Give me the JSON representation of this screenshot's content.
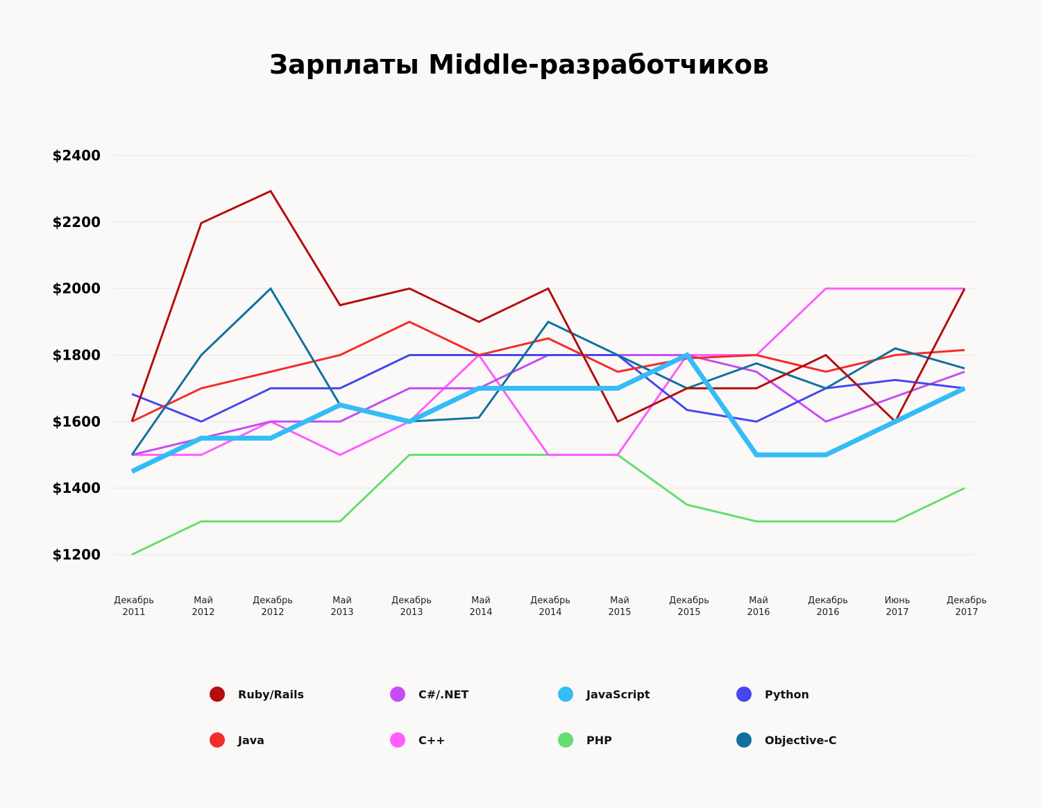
{
  "chart_data": {
    "type": "line",
    "title": "Зарплаты Middle-разработчиков",
    "xlabel": "",
    "ylabel": "",
    "ylim": [
      1200,
      2400
    ],
    "yticks": [
      {
        "value": 2400,
        "label": "$2400"
      },
      {
        "value": 2200,
        "label": "$2200"
      },
      {
        "value": 2000,
        "label": "$2000"
      },
      {
        "value": 1800,
        "label": "$1800"
      },
      {
        "value": 1600,
        "label": "$1600"
      },
      {
        "value": 1400,
        "label": "$1400"
      },
      {
        "value": 1200,
        "label": "$1200"
      }
    ],
    "grid": true,
    "legend_position": "bottom",
    "categories": [
      {
        "line1": "Декабрь",
        "line2": "2011"
      },
      {
        "line1": "Май",
        "line2": "2012"
      },
      {
        "line1": "Декабрь",
        "line2": "2012"
      },
      {
        "line1": "Май",
        "line2": "2013"
      },
      {
        "line1": "Декабрь",
        "line2": "2013"
      },
      {
        "line1": "Май",
        "line2": "2014"
      },
      {
        "line1": "Декабрь",
        "line2": "2014"
      },
      {
        "line1": "Май",
        "line2": "2015"
      },
      {
        "line1": "Декабрь",
        "line2": "2015"
      },
      {
        "line1": "Май",
        "line2": "2016"
      },
      {
        "line1": "Декабрь",
        "line2": "2016"
      },
      {
        "line1": "Июнь",
        "line2": "2017"
      },
      {
        "line1": "Декабрь",
        "line2": "2017"
      }
    ],
    "series": [
      {
        "name": "PHP",
        "color": "#66dd6e",
        "emphasis": false,
        "values": [
          1200,
          1300,
          1300,
          1300,
          1500,
          1500,
          1500,
          1500,
          1350,
          1300,
          1300,
          1300,
          1400
        ]
      },
      {
        "name": "C++",
        "color": "#ff5cff",
        "emphasis": false,
        "values": [
          1500,
          1500,
          1600,
          1500,
          1600,
          1800,
          1500,
          1500,
          1800,
          1800,
          2000,
          2000,
          2000
        ]
      },
      {
        "name": "C#/.NET",
        "color": "#c54cf4",
        "emphasis": false,
        "values": [
          1500,
          1550,
          1600,
          1600,
          1700,
          1700,
          1800,
          1800,
          1800,
          1750,
          1600,
          1675,
          1750
        ]
      },
      {
        "name": "Python",
        "color": "#4646f0",
        "emphasis": false,
        "values": [
          1683,
          1600,
          1700,
          1700,
          1800,
          1800,
          1800,
          1800,
          1635,
          1600,
          1700,
          1725,
          1700
        ]
      },
      {
        "name": "Java",
        "color": "#f42c2c",
        "emphasis": false,
        "values": [
          1600,
          1700,
          1750,
          1800,
          1900,
          1800,
          1850,
          1750,
          1790,
          1800,
          1750,
          1800,
          1815
        ]
      },
      {
        "name": "Objective-C",
        "color": "#10709f",
        "emphasis": false,
        "values": [
          1500,
          1800,
          2000,
          1650,
          1600,
          1612,
          1900,
          1800,
          1700,
          1775,
          1700,
          1820,
          1760
        ]
      },
      {
        "name": "Ruby/Rails",
        "color": "#b40d0d",
        "emphasis": false,
        "values": [
          1600,
          2197,
          2293,
          1950,
          2000,
          1900,
          2000,
          1600,
          1700,
          1700,
          1800,
          1600,
          2000
        ]
      },
      {
        "name": "JavaScript",
        "color": "#34bcf6",
        "emphasis": true,
        "values": [
          1450,
          1550,
          1550,
          1650,
          1600,
          1700,
          1700,
          1700,
          1800,
          1500,
          1500,
          1600,
          1700
        ]
      }
    ],
    "legend": [
      {
        "name": "Ruby/Rails",
        "color": "#b40d0d"
      },
      {
        "name": "C#/.NET",
        "color": "#c54cf4"
      },
      {
        "name": "JavaScript",
        "color": "#34bcf6"
      },
      {
        "name": "Python",
        "color": "#4646f0"
      },
      {
        "name": "Java",
        "color": "#f42c2c"
      },
      {
        "name": "C++",
        "color": "#ff5cff"
      },
      {
        "name": "PHP",
        "color": "#66dd6e"
      },
      {
        "name": "Objective-C",
        "color": "#10709f"
      }
    ]
  }
}
